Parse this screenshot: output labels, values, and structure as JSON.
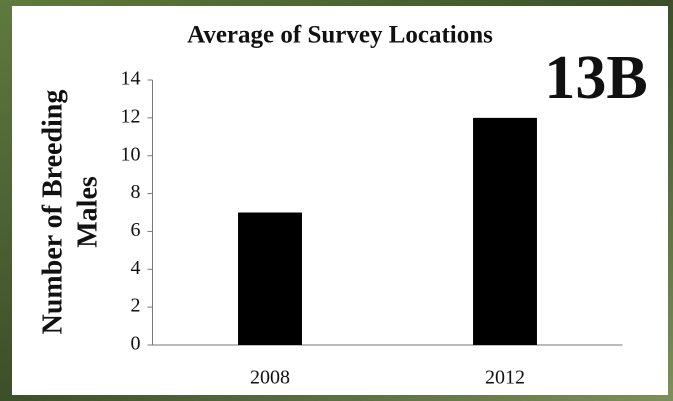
{
  "chart_data": {
    "type": "bar",
    "title": "Average of Survey Locations",
    "annotation": "13B",
    "ylabel": [
      "Number of Breeding",
      "Males"
    ],
    "categories": [
      "2008",
      "2012"
    ],
    "values": [
      7,
      12
    ],
    "color": "#000000",
    "ylim": [
      0,
      14
    ],
    "yticks": [
      0,
      2,
      4,
      6,
      8,
      10,
      12,
      14
    ],
    "grid": false
  }
}
